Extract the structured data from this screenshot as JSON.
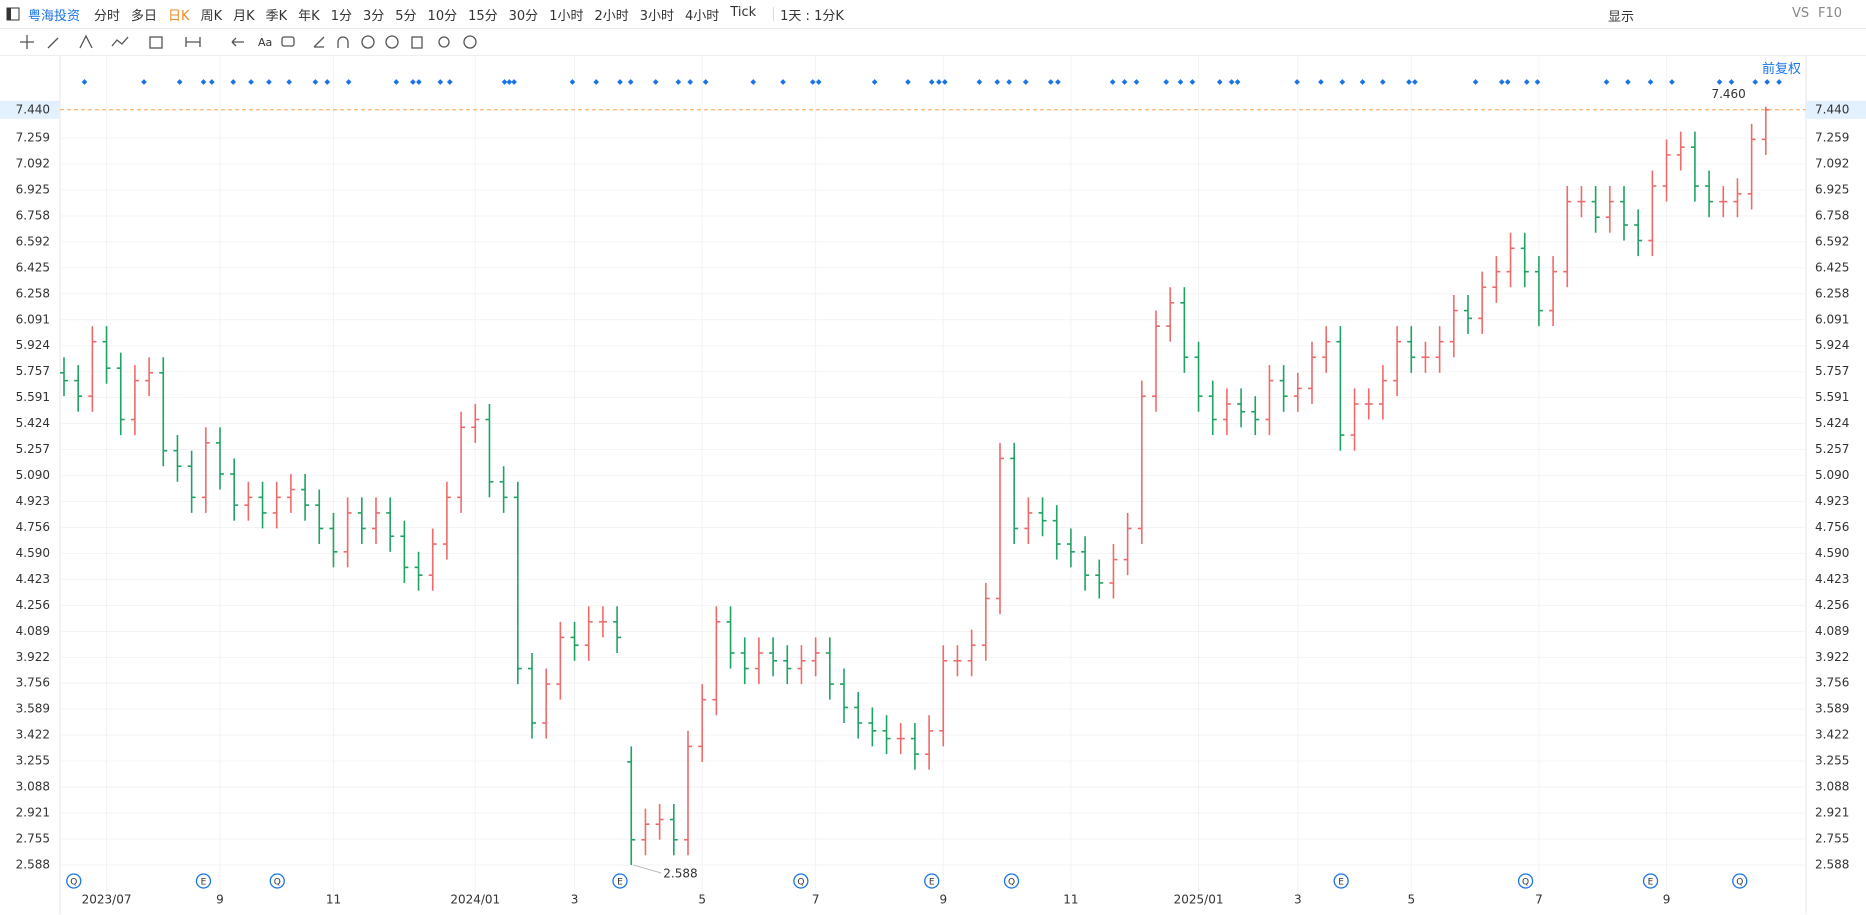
{
  "toolbar": {
    "stock": "粤海投资",
    "periods": [
      "分时",
      "多日",
      "日K",
      "周K",
      "月K",
      "季K",
      "年K",
      "1分",
      "3分",
      "5分",
      "10分",
      "15分",
      "30分",
      "1小时",
      "2小时",
      "3小时",
      "4小时",
      "Tick"
    ],
    "range": "1天 : 1分K",
    "display": "显示",
    "vs": "VS",
    "f10": "F10",
    "adjust": "前复权"
  },
  "events": [
    "Q",
    "E",
    "Q",
    "E",
    "Q",
    "E",
    "Q",
    "E",
    "Q",
    "E",
    "Q"
  ],
  "chart_data": {
    "type": "ohlc",
    "up_color": "#ef6b6b",
    "down_color": "#1fa363",
    "grid": true,
    "categories": [
      null,
      null,
      null,
      "2023/07",
      null,
      null,
      null,
      null,
      null,
      null,
      null,
      "9",
      null,
      null,
      null,
      null,
      null,
      null,
      null,
      "11",
      null,
      null,
      null,
      null,
      null,
      null,
      null,
      null,
      null,
      "2024/01",
      null,
      null,
      null,
      null,
      null,
      null,
      "3",
      null,
      null,
      null,
      null,
      null,
      null,
      null,
      null,
      "5",
      null,
      null,
      null,
      null,
      null,
      null,
      null,
      "7",
      null,
      null,
      null,
      null,
      null,
      null,
      null,
      null,
      "9",
      null,
      null,
      null,
      null,
      null,
      null,
      null,
      null,
      "11",
      null,
      null,
      null,
      null,
      null,
      null,
      null,
      null,
      "2025/01",
      null,
      null,
      null,
      null,
      null,
      null,
      "3",
      null,
      null,
      null,
      null,
      null,
      null,
      null,
      "5",
      null,
      null,
      null,
      null,
      null,
      null,
      null,
      null,
      "7",
      null,
      null,
      null,
      null,
      null,
      null,
      null,
      null,
      "9",
      null,
      null,
      null,
      null,
      null,
      null,
      null
    ],
    "open": [
      5.75,
      5.7,
      5.6,
      5.95,
      5.78,
      5.45,
      5.7,
      5.75,
      5.25,
      5.15,
      4.95,
      5.3,
      5.1,
      4.9,
      4.95,
      4.85,
      4.95,
      5.0,
      4.9,
      4.75,
      4.6,
      4.85,
      4.75,
      4.85,
      4.7,
      4.5,
      4.45,
      4.65,
      4.95,
      5.4,
      5.45,
      5.05,
      4.95,
      3.85,
      3.5,
      3.75,
      4.05,
      4.0,
      4.15,
      4.15,
      3.25,
      2.75,
      2.85,
      2.88,
      2.75,
      3.35,
      3.65,
      4.15,
      3.95,
      3.85,
      3.95,
      3.9,
      3.85,
      3.9,
      3.95,
      3.75,
      3.6,
      3.5,
      3.45,
      3.4,
      3.4,
      3.3,
      3.45,
      3.9,
      3.9,
      4.0,
      4.3,
      5.2,
      4.75,
      4.85,
      4.8,
      4.65,
      4.6,
      4.45,
      4.4,
      4.55,
      4.75,
      5.6,
      6.05,
      6.2,
      5.85,
      5.6,
      5.45,
      5.55,
      5.5,
      5.45,
      5.7,
      5.6,
      5.65,
      5.85,
      5.95,
      5.35,
      5.55,
      5.55,
      5.7,
      5.95,
      5.85,
      5.85,
      5.95,
      6.15,
      6.1,
      6.3,
      6.4,
      6.55,
      6.4,
      6.15,
      6.4,
      6.85,
      6.85,
      6.75,
      6.85,
      6.7,
      6.6,
      6.95,
      7.15,
      7.2,
      6.95,
      6.85,
      6.85,
      6.9,
      7.25
    ],
    "high": [
      5.85,
      5.8,
      6.05,
      6.05,
      5.88,
      5.8,
      5.85,
      5.85,
      5.35,
      5.25,
      5.4,
      5.4,
      5.2,
      5.05,
      5.05,
      5.05,
      5.1,
      5.1,
      5.0,
      4.85,
      4.95,
      4.95,
      4.95,
      4.95,
      4.8,
      4.6,
      4.75,
      5.05,
      5.5,
      5.55,
      5.55,
      5.15,
      5.05,
      3.95,
      3.85,
      4.15,
      4.15,
      4.25,
      4.25,
      4.25,
      3.35,
      2.95,
      2.98,
      2.98,
      3.45,
      3.75,
      4.25,
      4.25,
      4.05,
      4.05,
      4.05,
      4.0,
      4.0,
      4.05,
      4.05,
      3.85,
      3.7,
      3.6,
      3.55,
      3.5,
      3.5,
      3.55,
      4.0,
      4.0,
      4.1,
      4.4,
      5.3,
      5.3,
      4.95,
      4.95,
      4.9,
      4.75,
      4.7,
      4.55,
      4.65,
      4.85,
      5.7,
      6.15,
      6.3,
      6.3,
      5.95,
      5.7,
      5.65,
      5.65,
      5.6,
      5.8,
      5.8,
      5.75,
      5.95,
      6.05,
      6.05,
      5.65,
      5.65,
      5.8,
      6.05,
      6.05,
      5.95,
      6.05,
      6.25,
      6.25,
      6.4,
      6.5,
      6.65,
      6.65,
      6.5,
      6.5,
      6.95,
      6.95,
      6.95,
      6.95,
      6.95,
      6.8,
      7.05,
      7.25,
      7.3,
      7.3,
      7.05,
      6.95,
      7.0,
      7.35,
      7.46
    ],
    "low": [
      5.6,
      5.5,
      5.5,
      5.68,
      5.35,
      5.35,
      5.6,
      5.15,
      5.05,
      4.85,
      4.85,
      5.0,
      4.8,
      4.8,
      4.75,
      4.75,
      4.85,
      4.8,
      4.65,
      4.5,
      4.5,
      4.65,
      4.65,
      4.6,
      4.4,
      4.35,
      4.35,
      4.55,
      4.85,
      5.3,
      4.95,
      4.85,
      3.75,
      3.4,
      3.4,
      3.65,
      3.9,
      3.9,
      4.05,
      3.95,
      2.588,
      2.65,
      2.75,
      2.65,
      2.65,
      3.25,
      3.55,
      3.85,
      3.75,
      3.75,
      3.8,
      3.75,
      3.75,
      3.8,
      3.65,
      3.5,
      3.4,
      3.35,
      3.3,
      3.3,
      3.2,
      3.2,
      3.35,
      3.8,
      3.8,
      3.9,
      4.2,
      4.65,
      4.65,
      4.7,
      4.55,
      4.5,
      4.35,
      4.3,
      4.3,
      4.45,
      4.65,
      5.5,
      5.95,
      5.75,
      5.5,
      5.35,
      5.35,
      5.4,
      5.35,
      5.35,
      5.5,
      5.5,
      5.55,
      5.75,
      5.25,
      5.25,
      5.45,
      5.45,
      5.6,
      5.75,
      5.75,
      5.75,
      5.85,
      6.0,
      6.0,
      6.2,
      6.3,
      6.3,
      6.05,
      6.05,
      6.3,
      6.75,
      6.65,
      6.65,
      6.6,
      6.5,
      6.5,
      6.85,
      7.05,
      6.85,
      6.75,
      6.75,
      6.75,
      6.8,
      7.15
    ],
    "close": [
      5.7,
      5.6,
      5.95,
      5.78,
      5.45,
      5.7,
      5.75,
      5.25,
      5.15,
      4.95,
      5.3,
      5.1,
      4.9,
      4.95,
      4.85,
      4.95,
      5.0,
      4.9,
      4.75,
      4.6,
      4.85,
      4.75,
      4.85,
      4.7,
      4.5,
      4.45,
      4.65,
      4.95,
      5.4,
      5.45,
      5.05,
      4.95,
      3.85,
      3.5,
      3.75,
      4.05,
      4.0,
      4.15,
      4.15,
      4.05,
      2.75,
      2.85,
      2.88,
      2.75,
      3.35,
      3.65,
      4.15,
      3.95,
      3.85,
      3.95,
      3.9,
      3.85,
      3.9,
      3.95,
      3.75,
      3.6,
      3.5,
      3.45,
      3.4,
      3.4,
      3.3,
      3.45,
      3.9,
      3.9,
      4.0,
      4.3,
      5.2,
      4.75,
      4.85,
      4.8,
      4.65,
      4.6,
      4.45,
      4.4,
      4.55,
      4.75,
      5.6,
      6.05,
      6.2,
      5.85,
      5.6,
      5.45,
      5.55,
      5.5,
      5.45,
      5.7,
      5.6,
      5.65,
      5.85,
      5.95,
      5.35,
      5.55,
      5.55,
      5.7,
      5.95,
      5.85,
      5.85,
      5.95,
      6.15,
      6.1,
      6.3,
      6.4,
      6.55,
      6.4,
      6.15,
      6.4,
      6.85,
      6.85,
      6.75,
      6.85,
      6.7,
      6.6,
      6.95,
      7.15,
      7.2,
      6.95,
      6.85,
      6.85,
      6.9,
      7.25,
      7.44
    ],
    "ylim": [
      2.44,
      7.67
    ],
    "yticks": [
      2.588,
      2.755,
      2.921,
      3.088,
      3.255,
      3.422,
      3.589,
      3.756,
      3.922,
      4.089,
      4.256,
      4.423,
      {
        "value": 4.59,
        "label": "4.590"
      },
      4.756,
      4.923,
      {
        "value": 5.09,
        "label": "5.090"
      },
      5.257,
      5.424,
      5.591,
      5.757,
      5.924,
      6.091,
      6.258,
      6.425,
      6.592,
      6.758,
      6.925,
      7.092,
      7.259
    ],
    "last_price": {
      "value": 7.44,
      "label": "7.440"
    },
    "annotations": [
      {
        "value": 7.46,
        "label": "7.460"
      }
    ]
  }
}
